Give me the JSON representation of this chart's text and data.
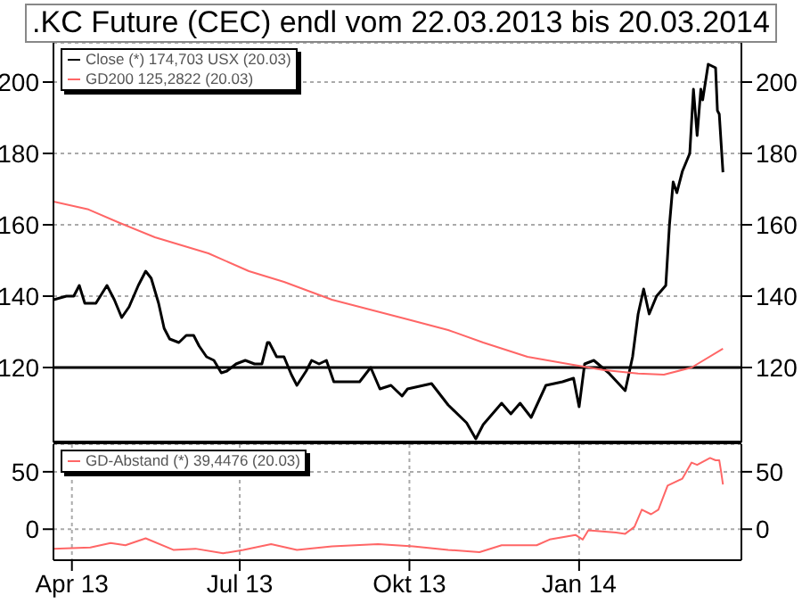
{
  "chart_data": [
    {
      "type": "line",
      "title": ".KC Future (CEC) endl vom 22.03.2013 bis 20.03.2014",
      "xlim": [
        "2013-03-22",
        "2014-03-30"
      ],
      "xticks": [
        {
          "value": "2013-04-01",
          "label": null
        },
        {
          "value": "2013-07-01",
          "label": null
        },
        {
          "value": "2013-10-01",
          "label": null
        },
        {
          "value": "2014-01-01",
          "label": null
        }
      ],
      "ylim": [
        99,
        211
      ],
      "yticks": [
        120,
        140,
        160,
        180,
        200
      ],
      "y2lim": [
        99,
        211
      ],
      "y2ticks": [
        120,
        140,
        160,
        180,
        200
      ],
      "tick_labels": "y",
      "grid": true,
      "legend": "top left",
      "ref_lines": [
        {
          "axis": "y",
          "value": 120,
          "color": "#000000",
          "line_style": "solid"
        }
      ],
      "series": [
        {
          "name": "Close (*) 174,703 USX (20.03)",
          "color": "#000000",
          "x": [
            "2013-03-22",
            "2013-03-29",
            "2013-04-02",
            "2013-04-05",
            "2013-04-08",
            "2013-04-14",
            "2013-04-20",
            "2013-04-24",
            "2013-04-28",
            "2013-05-02",
            "2013-05-07",
            "2013-05-11",
            "2013-05-14",
            "2013-05-18",
            "2013-05-21",
            "2013-05-24",
            "2013-05-29",
            "2013-06-02",
            "2013-06-06",
            "2013-06-09",
            "2013-06-13",
            "2013-06-17",
            "2013-06-21",
            "2013-06-24",
            "2013-06-29",
            "2013-07-04",
            "2013-07-09",
            "2013-07-13",
            "2013-07-16",
            "2013-07-17",
            "2013-07-21",
            "2013-07-25",
            "2013-07-29",
            "2013-08-01",
            "2013-08-06",
            "2013-08-09",
            "2013-08-13",
            "2013-08-17",
            "2013-08-21",
            "2013-08-28",
            "2013-09-04",
            "2013-09-10",
            "2013-09-15",
            "2013-09-21",
            "2013-09-27",
            "2013-09-30",
            "2013-10-13",
            "2013-10-22",
            "2013-11-01",
            "2013-11-06",
            "2013-11-10",
            "2013-11-20",
            "2013-11-25",
            "2013-11-30",
            "2013-12-06",
            "2013-12-14",
            "2013-12-23",
            "2013-12-29",
            "2014-01-01",
            "2014-01-04",
            "2014-01-09",
            "2014-01-17",
            "2014-01-26",
            "2014-01-30",
            "2014-02-02",
            "2014-02-05",
            "2014-02-08",
            "2014-02-12",
            "2014-02-17",
            "2014-02-19",
            "2014-02-21",
            "2014-02-23",
            "2014-02-26",
            "2014-03-02",
            "2014-03-04",
            "2014-03-06",
            "2014-03-08",
            "2014-03-09",
            "2014-03-12",
            "2014-03-16",
            "2014-03-17",
            "2014-03-18",
            "2014-03-20"
          ],
          "values": [
            139,
            140,
            140,
            143,
            138,
            138,
            143,
            139,
            134,
            137,
            143,
            147,
            145,
            138,
            131,
            128,
            127,
            129,
            129,
            126,
            123,
            122,
            118.5,
            119,
            121,
            122,
            121,
            121,
            127,
            127,
            123,
            123,
            118,
            115,
            119,
            122,
            121,
            122,
            116,
            116,
            116,
            120,
            114,
            115,
            112,
            114,
            115.5,
            109.5,
            104.5,
            100,
            104,
            110,
            107,
            110,
            106,
            115,
            116,
            117,
            109,
            121,
            122,
            118.5,
            113.5,
            123,
            135,
            142,
            135,
            140,
            143,
            160,
            172,
            169,
            175,
            180,
            198,
            185,
            198,
            195,
            205,
            204,
            192,
            191,
            174.7
          ]
        },
        {
          "name": "GD200 125,2822 (20.03)",
          "color": "#ff6666",
          "x": [
            "2013-03-22",
            "2013-04-10",
            "2013-04-27",
            "2013-05-16",
            "2013-06-14",
            "2013-07-06",
            "2013-07-25",
            "2013-08-20",
            "2013-09-30",
            "2013-10-22",
            "2013-11-10",
            "2013-12-04",
            "2013-12-26",
            "2014-01-14",
            "2014-02-02",
            "2014-02-16",
            "2014-03-03",
            "2014-03-20"
          ],
          "values": [
            166.5,
            164.3,
            160.5,
            156.5,
            152,
            147,
            144,
            139,
            133.5,
            130.5,
            127,
            123,
            121,
            119.3,
            118.3,
            118,
            120,
            125.3
          ]
        }
      ]
    },
    {
      "type": "line",
      "xlim": [
        "2013-03-22",
        "2014-03-30"
      ],
      "xticks": [
        {
          "value": "2013-04-01",
          "label": "Apr 13"
        },
        {
          "value": "2013-07-01",
          "label": "Jul 13"
        },
        {
          "value": "2013-10-01",
          "label": "Okt 13"
        },
        {
          "value": "2014-01-01",
          "label": "Jan 14"
        }
      ],
      "ylim": [
        -27,
        74
      ],
      "yticks": [
        0,
        50
      ],
      "y2lim": [
        -27,
        74
      ],
      "y2ticks": [
        0,
        50
      ],
      "grid": true,
      "legend": "top left",
      "series": [
        {
          "name": "GD-Abstand (*) 39,4476 (20.03)",
          "color": "#ff6666",
          "x": [
            "2013-03-22",
            "2013-04-11",
            "2013-04-22",
            "2013-04-30",
            "2013-05-11",
            "2013-05-26",
            "2013-06-07",
            "2013-06-22",
            "2013-07-03",
            "2013-07-18",
            "2013-08-01",
            "2013-08-20",
            "2013-09-14",
            "2013-10-03",
            "2013-10-22",
            "2013-11-08",
            "2013-11-20",
            "2013-12-09",
            "2013-12-16",
            "2013-12-30",
            "2014-01-03",
            "2014-01-06",
            "2014-01-21",
            "2014-01-26",
            "2014-01-31",
            "2014-02-04",
            "2014-02-09",
            "2014-02-13",
            "2014-02-18",
            "2014-02-26",
            "2014-03-03",
            "2014-03-06",
            "2014-03-13",
            "2014-03-16",
            "2014-03-18",
            "2014-03-19",
            "2014-03-20"
          ],
          "values": [
            -17,
            -16,
            -12,
            -14,
            -8,
            -18,
            -17,
            -21,
            -18,
            -13,
            -18,
            -15,
            -13,
            -15,
            -18,
            -20,
            -14,
            -14,
            -9,
            -5,
            -9,
            -1,
            -3,
            -4,
            2,
            17,
            13,
            17,
            38,
            44,
            58,
            56,
            62,
            60,
            60,
            50,
            39
          ]
        }
      ]
    }
  ]
}
